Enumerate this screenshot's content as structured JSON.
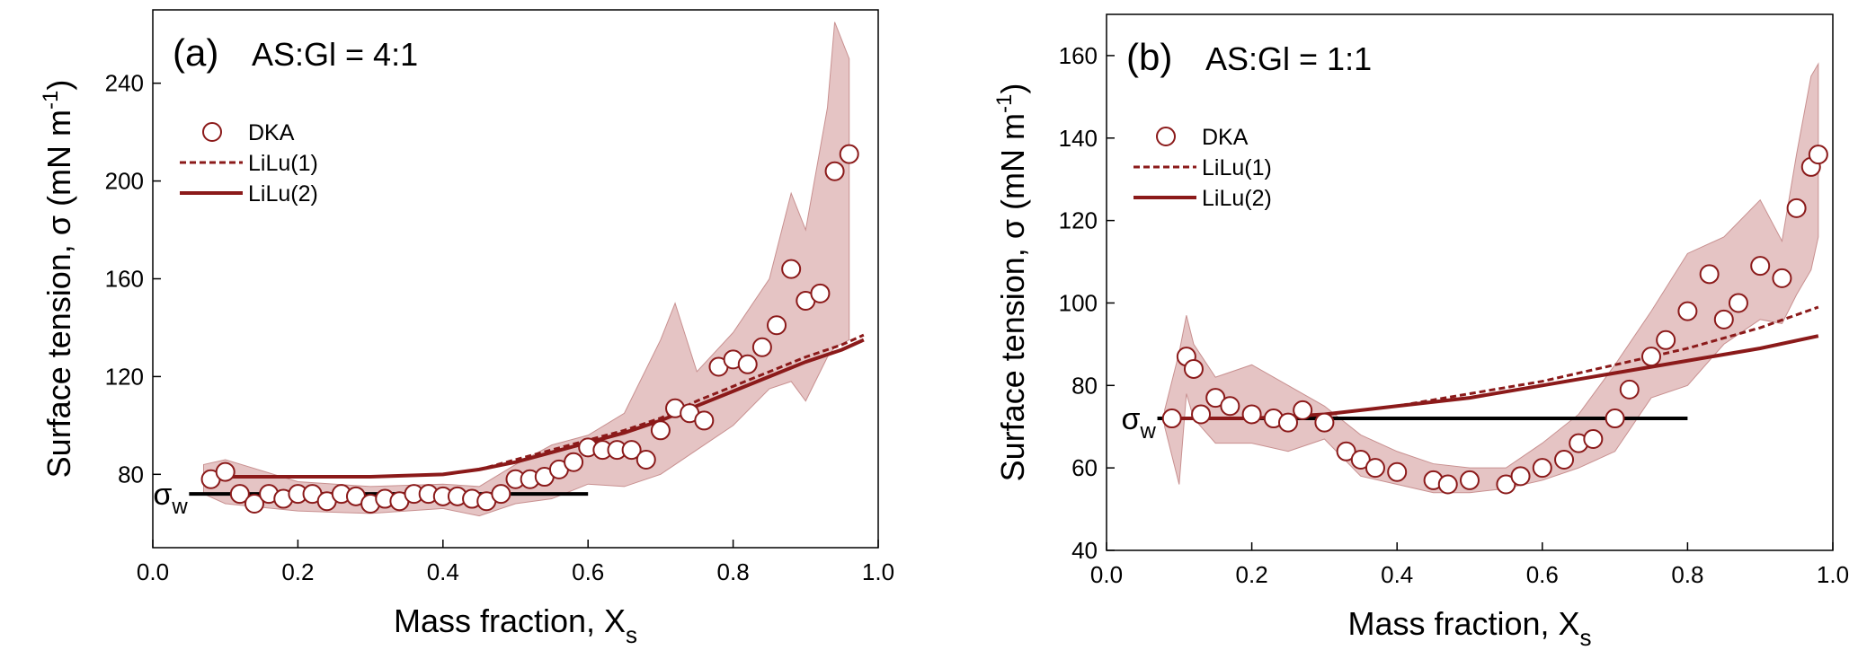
{
  "chart_data": [
    {
      "type": "scatter",
      "title": "(a)",
      "annotation": "AS:Gl = 4:1",
      "xlabel": "Mass fraction, X",
      "xlabel_sub": "s",
      "ylabel": "Surface tension,  σ (mN m",
      "ylabel_sup": "-1",
      "ylabel_end": ")",
      "xlim": [
        0,
        1
      ],
      "ylim": [
        50,
        270
      ],
      "xticks": [
        {
          "value": 0,
          "label": "0.0"
        },
        0.2,
        0.4,
        0.6,
        0.8,
        {
          "value": 1,
          "label": "1.0"
        }
      ],
      "yticks": [
        80,
        120,
        160,
        200,
        240
      ],
      "band": {
        "color": "#dcb0b0",
        "x": [
          0.07,
          0.1,
          0.2,
          0.3,
          0.4,
          0.45,
          0.5,
          0.55,
          0.6,
          0.65,
          0.7,
          0.72,
          0.75,
          0.8,
          0.85,
          0.88,
          0.9,
          0.93,
          0.94,
          0.96
        ],
        "lower": [
          72,
          68,
          65,
          64,
          66,
          63,
          68,
          70,
          76,
          75,
          80,
          84,
          90,
          100,
          115,
          118,
          110,
          128,
          132,
          135
        ],
        "upper": [
          84,
          86,
          77,
          75,
          76,
          75,
          84,
          92,
          96,
          105,
          135,
          150,
          122,
          138,
          160,
          195,
          180,
          230,
          265,
          250
        ]
      },
      "sigma_w": {
        "label": "σ",
        "sub": "w",
        "value": 72,
        "x": [
          0.05,
          0.6
        ]
      },
      "series": [
        {
          "name": "DKA",
          "style": "marker",
          "color": "#8b1a1a",
          "x": [
            0.08,
            0.1,
            0.12,
            0.14,
            0.16,
            0.18,
            0.2,
            0.22,
            0.24,
            0.26,
            0.28,
            0.3,
            0.32,
            0.34,
            0.36,
            0.38,
            0.4,
            0.42,
            0.44,
            0.46,
            0.48,
            0.5,
            0.52,
            0.54,
            0.56,
            0.58,
            0.6,
            0.62,
            0.64,
            0.66,
            0.68,
            0.7,
            0.72,
            0.74,
            0.76,
            0.78,
            0.8,
            0.82,
            0.84,
            0.86,
            0.88,
            0.9,
            0.92,
            0.94,
            0.96
          ],
          "values": [
            78,
            81,
            72,
            68,
            72,
            70,
            72,
            72,
            69,
            72,
            71,
            68,
            70,
            69,
            72,
            72,
            71,
            71,
            70,
            69,
            72,
            78,
            78,
            79,
            82,
            85,
            91,
            90,
            90,
            90,
            86,
            98,
            107,
            105,
            102,
            124,
            127,
            125,
            132,
            141,
            164,
            151,
            154,
            204,
            211
          ]
        },
        {
          "name": "LiLu(1)",
          "style": "dashed",
          "color": "#8b1a1a",
          "x": [
            0.08,
            0.2,
            0.3,
            0.4,
            0.45,
            0.5,
            0.55,
            0.6,
            0.65,
            0.7,
            0.75,
            0.8,
            0.85,
            0.9,
            0.95,
            0.98
          ],
          "values": [
            79,
            79,
            79,
            80,
            82,
            86,
            90,
            94,
            98,
            103,
            110,
            116,
            122,
            128,
            133,
            137
          ]
        },
        {
          "name": "LiLu(2)",
          "style": "solid",
          "color": "#8b1a1a",
          "x": [
            0.08,
            0.2,
            0.3,
            0.4,
            0.45,
            0.5,
            0.55,
            0.6,
            0.65,
            0.7,
            0.75,
            0.8,
            0.85,
            0.9,
            0.95,
            0.98
          ],
          "values": [
            79,
            79,
            79,
            80,
            82,
            85,
            89,
            93,
            97,
            102,
            108,
            114,
            120,
            126,
            131,
            135
          ]
        }
      ]
    },
    {
      "type": "scatter",
      "title": "(b)",
      "annotation": "AS:Gl = 1:1",
      "xlabel": "Mass fraction, X",
      "xlabel_sub": "s",
      "ylabel": "Surface tension,  σ (mN m",
      "ylabel_sup": "-1",
      "ylabel_end": ")",
      "xlim": [
        0,
        1
      ],
      "ylim": [
        40,
        170
      ],
      "xticks": [
        {
          "value": 0,
          "label": "0.0"
        },
        0.2,
        0.4,
        0.6,
        0.8,
        {
          "value": 1,
          "label": "1.0"
        }
      ],
      "yticks": [
        40,
        60,
        80,
        100,
        120,
        140,
        160
      ],
      "band": {
        "color": "#dcb0b0",
        "x": [
          0.08,
          0.1,
          0.11,
          0.12,
          0.15,
          0.2,
          0.25,
          0.3,
          0.35,
          0.4,
          0.45,
          0.5,
          0.55,
          0.6,
          0.65,
          0.7,
          0.75,
          0.8,
          0.85,
          0.9,
          0.93,
          0.95,
          0.97,
          0.98
        ],
        "lower": [
          70,
          56,
          78,
          72,
          66,
          66,
          64,
          67,
          58,
          56,
          54,
          54,
          55,
          57,
          60,
          64,
          77,
          80,
          90,
          96,
          95,
          102,
          108,
          116
        ],
        "upper": [
          74,
          88,
          97,
          90,
          82,
          85,
          80,
          75,
          68,
          64,
          61,
          60,
          60,
          66,
          73,
          85,
          98,
          112,
          116,
          125,
          115,
          136,
          155,
          158
        ]
      },
      "sigma_w": {
        "label": "σ",
        "sub": "w",
        "value": 72,
        "x": [
          0.07,
          0.8
        ]
      },
      "series": [
        {
          "name": "DKA",
          "style": "marker",
          "color": "#8b1a1a",
          "x": [
            0.09,
            0.11,
            0.12,
            0.13,
            0.15,
            0.17,
            0.2,
            0.23,
            0.25,
            0.27,
            0.3,
            0.33,
            0.35,
            0.37,
            0.4,
            0.45,
            0.47,
            0.5,
            0.55,
            0.57,
            0.6,
            0.63,
            0.65,
            0.67,
            0.7,
            0.72,
            0.75,
            0.77,
            0.8,
            0.83,
            0.85,
            0.87,
            0.9,
            0.93,
            0.95,
            0.97,
            0.98
          ],
          "values": [
            72,
            87,
            84,
            73,
            77,
            75,
            73,
            72,
            71,
            74,
            71,
            64,
            62,
            60,
            59,
            57,
            56,
            57,
            56,
            58,
            60,
            62,
            66,
            67,
            72,
            79,
            87,
            91,
            98,
            107,
            96,
            100,
            109,
            106,
            123,
            133,
            136
          ]
        },
        {
          "name": "LiLu(1)",
          "style": "dashed",
          "color": "#8b1a1a",
          "x": [
            0.08,
            0.2,
            0.3,
            0.4,
            0.5,
            0.6,
            0.7,
            0.8,
            0.9,
            0.98
          ],
          "values": [
            72,
            72,
            73,
            75,
            78,
            81,
            85,
            89,
            94,
            99
          ]
        },
        {
          "name": "LiLu(2)",
          "style": "solid",
          "color": "#8b1a1a",
          "x": [
            0.08,
            0.2,
            0.3,
            0.4,
            0.5,
            0.6,
            0.7,
            0.8,
            0.9,
            0.98
          ],
          "values": [
            72,
            72,
            73,
            75,
            77,
            80,
            83,
            86,
            89,
            92
          ]
        }
      ]
    }
  ]
}
